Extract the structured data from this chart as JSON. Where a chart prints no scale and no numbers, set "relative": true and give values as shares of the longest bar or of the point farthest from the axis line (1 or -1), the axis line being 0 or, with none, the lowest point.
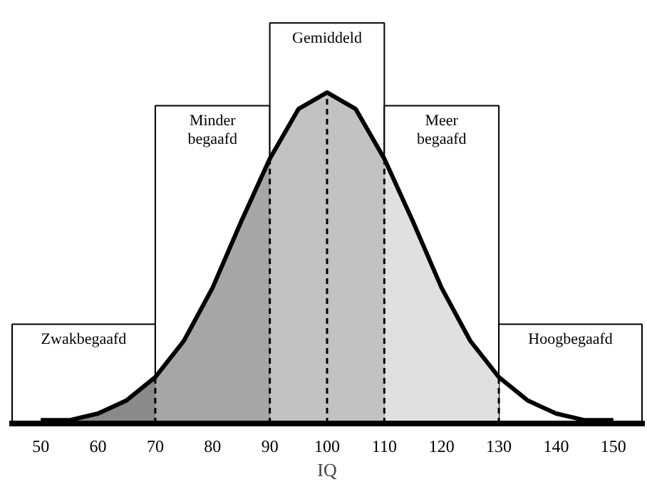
{
  "chart_data": {
    "type": "area",
    "relative": true,
    "xlabel": "IQ",
    "xlim": [
      44.5,
      155.5
    ],
    "xticks": [
      50,
      60,
      70,
      80,
      90,
      100,
      110,
      120,
      130,
      140,
      150
    ],
    "grid": false,
    "series": [
      {
        "color": "#8a8a8a",
        "x": [
          50,
          55,
          60,
          65,
          70
        ],
        "values": [
          0.01,
          0.01,
          0.03,
          0.07,
          0.14
        ]
      },
      {
        "color": "#a6a6a6",
        "x": [
          70,
          75,
          80,
          85,
          90
        ],
        "values": [
          0.14,
          0.25,
          0.41,
          0.61,
          0.8
        ]
      },
      {
        "color": "#c2c2c2",
        "x": [
          90,
          95,
          100,
          105,
          110
        ],
        "values": [
          0.8,
          0.95,
          1,
          0.95,
          0.8
        ]
      },
      {
        "color": "#e0e0e0",
        "x": [
          110,
          115,
          120,
          125,
          130
        ],
        "values": [
          0.8,
          0.61,
          0.41,
          0.25,
          0.14
        ]
      },
      {
        "type": "line",
        "color": "#000000",
        "x": [
          50,
          55,
          60,
          65,
          70,
          75,
          80,
          85,
          90,
          95,
          100,
          105,
          110,
          115,
          120,
          125,
          130,
          135,
          140,
          145,
          150
        ],
        "values": [
          0.01,
          0.01,
          0.03,
          0.07,
          0.14,
          0.25,
          0.41,
          0.61,
          0.8,
          0.95,
          1,
          0.95,
          0.8,
          0.61,
          0.41,
          0.25,
          0.14,
          0.07,
          0.03,
          0.01,
          0.01
        ]
      }
    ],
    "ref_lines": [
      {
        "axis": "x",
        "value": 70,
        "line_style": "dashed"
      },
      {
        "axis": "x",
        "value": 90,
        "line_style": "dashed"
      },
      {
        "axis": "x",
        "value": 100,
        "line_style": "dashed"
      },
      {
        "axis": "x",
        "value": 110,
        "line_style": "dashed"
      },
      {
        "axis": "x",
        "value": 130,
        "line_style": "dashed"
      }
    ],
    "bands": [
      {
        "axis": "x",
        "from": 45,
        "to": 70,
        "label": "Zwakbegaafd"
      },
      {
        "axis": "x",
        "from": 70,
        "to": 90,
        "label": "Minder begaafd"
      },
      {
        "axis": "x",
        "from": 90,
        "to": 110,
        "label": "Gemiddeld"
      },
      {
        "axis": "x",
        "from": 110,
        "to": 130,
        "label": "Meer begaafd"
      },
      {
        "axis": "x",
        "from": 130,
        "to": 155,
        "label": "Hoogbegaafd"
      }
    ]
  }
}
